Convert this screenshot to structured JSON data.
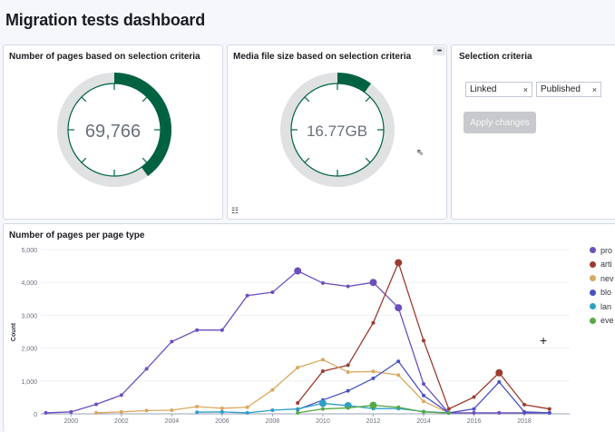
{
  "dashboard": {
    "title": "Migration tests dashboard"
  },
  "panel_pages": {
    "title": "Number of pages based on selection criteria",
    "value": "69,766",
    "fraction": 0.4
  },
  "panel_media": {
    "title": "Media file size based on selection criteria",
    "value": "16.77GB",
    "fraction": 0.1,
    "menu_icon": "dots-icon"
  },
  "panel_selection": {
    "title": "Selection criteria",
    "filters": [
      {
        "label": "Linked"
      },
      {
        "label": "Published"
      }
    ],
    "remove_glyph": "×",
    "apply_label": "Apply changes"
  },
  "colors": {
    "gauge_fill": "#006241",
    "gauge_track": "#e0e1e2",
    "gauge_tick": "#006241"
  },
  "chart_data": {
    "type": "line",
    "title": "Number of pages per page type",
    "ylabel": "Count",
    "xlim": [
      1998.8,
      2019.8
    ],
    "ylim": [
      0,
      5000
    ],
    "x_ticks": [
      2000,
      2002,
      2004,
      2006,
      2008,
      2010,
      2012,
      2014,
      2016,
      2018
    ],
    "y_ticks": [
      0,
      1000,
      2000,
      3000,
      4000,
      5000
    ],
    "y_tick_labels": [
      "0",
      "1,000",
      "2,000",
      "3,000",
      "4,000",
      "5,000"
    ],
    "series": [
      {
        "name": "pro",
        "color": "#6c4fbf",
        "points": [
          [
            1999,
            30
          ],
          [
            2000,
            60
          ],
          [
            2001,
            290
          ],
          [
            2002,
            570
          ],
          [
            2003,
            1370
          ],
          [
            2004,
            2200
          ],
          [
            2005,
            2550
          ],
          [
            2006,
            2550
          ],
          [
            2007,
            3600
          ],
          [
            2008,
            3700
          ],
          [
            2009,
            4350
          ],
          [
            2010,
            3980
          ],
          [
            2011,
            3880
          ],
          [
            2012,
            4000
          ],
          [
            2013,
            3230
          ],
          [
            2014,
            910
          ],
          [
            2015,
            30
          ],
          [
            2016,
            30
          ],
          [
            2017,
            30
          ],
          [
            2018,
            30
          ],
          [
            2019,
            30
          ]
        ],
        "big": [
          2009,
          2012,
          2013
        ]
      },
      {
        "name": "arti",
        "color": "#9c3b2f",
        "points": [
          [
            2009,
            330
          ],
          [
            2010,
            1300
          ],
          [
            2011,
            1480
          ],
          [
            2012,
            2770
          ],
          [
            2013,
            4600
          ],
          [
            2014,
            2230
          ],
          [
            2015,
            150
          ],
          [
            2016,
            510
          ],
          [
            2017,
            1250
          ],
          [
            2018,
            280
          ],
          [
            2019,
            150
          ]
        ],
        "big": [
          2013,
          2017
        ]
      },
      {
        "name": "nev",
        "color": "#d9a861",
        "points": [
          [
            2001,
            30
          ],
          [
            2002,
            60
          ],
          [
            2003,
            100
          ],
          [
            2004,
            110
          ],
          [
            2005,
            220
          ],
          [
            2006,
            170
          ],
          [
            2007,
            200
          ],
          [
            2008,
            730
          ],
          [
            2009,
            1410
          ],
          [
            2010,
            1650
          ],
          [
            2011,
            1270
          ],
          [
            2012,
            1290
          ],
          [
            2013,
            1180
          ],
          [
            2014,
            380
          ],
          [
            2015,
            30
          ]
        ],
        "big": []
      },
      {
        "name": "blo",
        "color": "#4a52c2",
        "points": [
          [
            2009,
            130
          ],
          [
            2010,
            420
          ],
          [
            2011,
            700
          ],
          [
            2012,
            1080
          ],
          [
            2013,
            1600
          ],
          [
            2014,
            560
          ],
          [
            2015,
            30
          ],
          [
            2016,
            150
          ],
          [
            2017,
            970
          ],
          [
            2018,
            60
          ],
          [
            2019,
            30
          ]
        ],
        "big": []
      },
      {
        "name": "lan",
        "color": "#2e9fc7",
        "points": [
          [
            2005,
            50
          ],
          [
            2006,
            60
          ],
          [
            2007,
            30
          ],
          [
            2008,
            110
          ],
          [
            2009,
            150
          ],
          [
            2010,
            320
          ],
          [
            2011,
            250
          ],
          [
            2012,
            160
          ],
          [
            2013,
            160
          ],
          [
            2014,
            70
          ],
          [
            2015,
            30
          ]
        ],
        "big": [
          2010,
          2011
        ]
      },
      {
        "name": "eve",
        "color": "#57a944",
        "points": [
          [
            2009,
            30
          ],
          [
            2010,
            150
          ],
          [
            2011,
            180
          ],
          [
            2012,
            260
          ],
          [
            2013,
            200
          ],
          [
            2014,
            60
          ],
          [
            2015,
            20
          ]
        ],
        "big": [
          2012
        ]
      }
    ]
  }
}
